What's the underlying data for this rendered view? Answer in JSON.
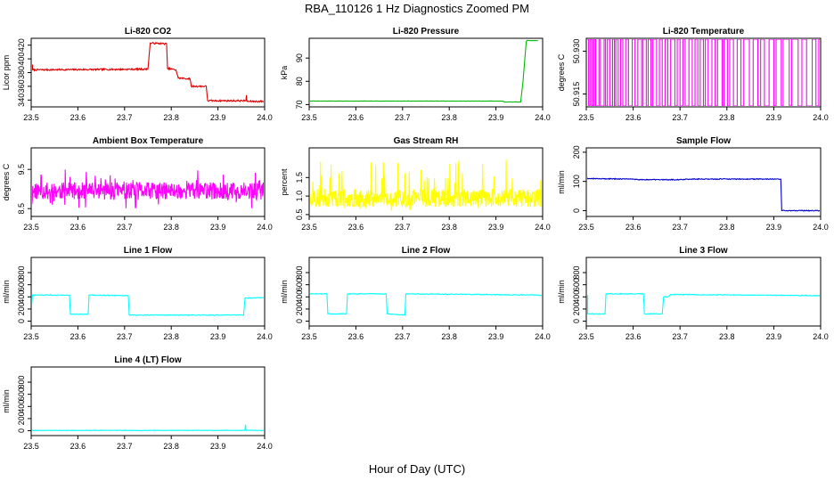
{
  "figure": {
    "title": "RBA_110126  1 Hz Diagnostics Zoomed PM",
    "xlabel": "Hour of Day (UTC)"
  },
  "chart_data": [
    {
      "id": "co2",
      "type": "line",
      "title": "Li-820 CO2",
      "ylabel": "Licor ppm",
      "color": "#dd0000",
      "noise": 1.2,
      "xlim": [
        23.5,
        24.0
      ],
      "ylim": [
        330,
        430
      ],
      "xticks": [
        23.5,
        23.6,
        23.7,
        23.8,
        23.9,
        24.0
      ],
      "xtick_labels": [
        "23.5",
        "23.6",
        "23.7",
        "23.8",
        "23.9",
        "24.0"
      ],
      "yticks": [
        340,
        360,
        380,
        400,
        420
      ],
      "ytick_labels": [
        "340",
        "360",
        "380",
        "400",
        "420"
      ],
      "x": [
        23.5,
        23.503,
        23.503,
        23.75,
        23.755,
        23.79,
        23.792,
        23.81,
        23.815,
        23.84,
        23.843,
        23.875,
        23.878,
        23.96,
        23.961,
        23.962,
        23.963,
        24.0
      ],
      "y": [
        388,
        391,
        384,
        385,
        423,
        422,
        386,
        384,
        372,
        371,
        360,
        360,
        339,
        339,
        347,
        339,
        338,
        338
      ]
    },
    {
      "id": "pressure",
      "type": "line",
      "title": "Li-820 Pressure",
      "ylabel": "kPa",
      "color": "#00bb00",
      "noise": 0.05,
      "xlim": [
        23.5,
        24.0
      ],
      "ylim": [
        69,
        98.5
      ],
      "xticks": [
        23.5,
        23.6,
        23.7,
        23.8,
        23.9,
        24.0
      ],
      "xtick_labels": [
        "23.5",
        "23.6",
        "23.7",
        "23.8",
        "23.9",
        "24.0"
      ],
      "yticks": [
        70,
        80,
        90
      ],
      "ytick_labels": [
        "70",
        "80",
        "90"
      ],
      "x": [
        23.5,
        23.915,
        23.918,
        23.953,
        23.958,
        23.962,
        23.965,
        23.967,
        23.972,
        23.99
      ],
      "y": [
        71.5,
        71.5,
        71.1,
        71.1,
        80,
        90,
        97.2,
        97.6,
        97.5,
        97.5
      ]
    },
    {
      "id": "licor_temp",
      "type": "line",
      "title": "Li-820 Temperature",
      "ylabel": "degrees C",
      "color": "#ff00ff",
      "noise": 0,
      "xlim": [
        23.5,
        24.0
      ],
      "ylim": [
        50.9105,
        50.9345
      ],
      "xticks": [
        23.5,
        23.6,
        23.7,
        23.8,
        23.9,
        24.0
      ],
      "xtick_labels": [
        "23.5",
        "23.6",
        "23.7",
        "23.8",
        "23.9",
        "24.0"
      ],
      "yticks": [
        50.915,
        50.93
      ],
      "ytick_labels": [
        "50.915",
        "50.930"
      ],
      "levels": [
        50.9108,
        50.9342
      ],
      "toggle_times": [
        23.505,
        23.508,
        23.512,
        23.516,
        23.52,
        23.527,
        23.53,
        23.538,
        23.541,
        23.545,
        23.55,
        23.556,
        23.56,
        23.563,
        23.568,
        23.573,
        23.578,
        23.584,
        23.59,
        23.598,
        23.604,
        23.61,
        23.618,
        23.621,
        23.628,
        23.632,
        23.638,
        23.642,
        23.65,
        23.656,
        23.662,
        23.668,
        23.674,
        23.68,
        23.689,
        23.694,
        23.7,
        23.706,
        23.711,
        23.719,
        23.726,
        23.732,
        23.738,
        23.743,
        23.75,
        23.754,
        23.76,
        23.768,
        23.775,
        23.78,
        23.79,
        23.794,
        23.801,
        23.806,
        23.814,
        23.822,
        23.83,
        23.836,
        23.848,
        23.856,
        23.866,
        23.872,
        23.88,
        23.89,
        23.9,
        23.905,
        23.916,
        23.92,
        23.933,
        23.938,
        23.952,
        23.96,
        23.97,
        23.982,
        23.99,
        23.996
      ]
    },
    {
      "id": "box_temp",
      "type": "line",
      "title": "Ambient Box Temperature",
      "ylabel": "degrees C",
      "color": "#ff00ff",
      "mode": "noise",
      "seed": 11,
      "base": 8.95,
      "spread": 0.22,
      "spike_up": 0.55,
      "spike_down": 0.45,
      "xlim": [
        23.5,
        24.0
      ],
      "ylim": [
        8.3,
        10.05
      ],
      "xticks": [
        23.5,
        23.6,
        23.7,
        23.8,
        23.9,
        24.0
      ],
      "xtick_labels": [
        "23.5",
        "23.6",
        "23.7",
        "23.8",
        "23.9",
        "24.0"
      ],
      "yticks": [
        8.5,
        9.5
      ],
      "ytick_labels": [
        "8.5",
        "9.5"
      ]
    },
    {
      "id": "rh",
      "type": "line",
      "title": "Gas Stream RH",
      "ylabel": "percent",
      "color": "#ffff00",
      "mode": "noise",
      "seed": 23,
      "base": 0.95,
      "spread": 0.25,
      "spike_up": 1.05,
      "spike_down": 0.35,
      "xlim": [
        23.5,
        24.0
      ],
      "ylim": [
        0.45,
        2.3
      ],
      "xticks": [
        23.5,
        23.6,
        23.7,
        23.8,
        23.9,
        24.0
      ],
      "xtick_labels": [
        "23.5",
        "23.6",
        "23.7",
        "23.8",
        "23.9",
        "24.0"
      ],
      "yticks": [
        0.5,
        1.0,
        1.5
      ],
      "ytick_labels": [
        "0.5",
        "1.0",
        "1.5"
      ]
    },
    {
      "id": "sample_flow",
      "type": "line",
      "title": "Sample Flow",
      "ylabel": "ml/min",
      "color": "#0000cc",
      "noise": 1.5,
      "xlim": [
        23.5,
        24.0
      ],
      "ylim": [
        -20,
        215
      ],
      "xticks": [
        23.5,
        23.6,
        23.7,
        23.8,
        23.9,
        24.0
      ],
      "xtick_labels": [
        "23.5",
        "23.6",
        "23.7",
        "23.8",
        "23.9",
        "24.0"
      ],
      "yticks": [
        0,
        100,
        200
      ],
      "ytick_labels": [
        "0",
        "100",
        "200"
      ],
      "x": [
        23.5,
        23.6,
        23.61,
        23.7,
        23.72,
        23.915,
        23.917,
        24.0
      ],
      "y": [
        110,
        108,
        106,
        106,
        108,
        108,
        0,
        0
      ]
    },
    {
      "id": "line1",
      "type": "line",
      "title": "Line 1 Flow",
      "ylabel": "ml/min",
      "color": "#00ffff",
      "noise": 6,
      "xlim": [
        23.5,
        24.0
      ],
      "ylim": [
        -80,
        1050
      ],
      "xticks": [
        23.5,
        23.6,
        23.7,
        23.8,
        23.9,
        24.0
      ],
      "xtick_labels": [
        "23.5",
        "23.6",
        "23.7",
        "23.8",
        "23.9",
        "24.0"
      ],
      "yticks": [
        0,
        200,
        400,
        600,
        800
      ],
      "ytick_labels": [
        "0",
        "200",
        "400",
        "600",
        "800"
      ],
      "x": [
        23.5,
        23.503,
        23.503,
        23.582,
        23.584,
        23.622,
        23.624,
        23.708,
        23.71,
        23.955,
        23.958,
        24.0
      ],
      "y": [
        200,
        430,
        430,
        430,
        115,
        115,
        430,
        420,
        100,
        100,
        380,
        390
      ]
    },
    {
      "id": "line2",
      "type": "line",
      "title": "Line 2 Flow",
      "ylabel": "ml/min",
      "color": "#00ffff",
      "noise": 6,
      "xlim": [
        23.5,
        24.0
      ],
      "ylim": [
        -80,
        1050
      ],
      "xticks": [
        23.5,
        23.6,
        23.7,
        23.8,
        23.9,
        24.0
      ],
      "xtick_labels": [
        "23.5",
        "23.6",
        "23.7",
        "23.8",
        "23.9",
        "24.0"
      ],
      "yticks": [
        0,
        200,
        400,
        600,
        800
      ],
      "ytick_labels": [
        "0",
        "200",
        "400",
        "600",
        "800"
      ],
      "x": [
        23.5,
        23.538,
        23.54,
        23.58,
        23.582,
        23.665,
        23.667,
        23.705,
        23.707,
        23.99,
        24.0
      ],
      "y": [
        450,
        450,
        120,
        120,
        450,
        450,
        120,
        100,
        450,
        430,
        420
      ]
    },
    {
      "id": "line3",
      "type": "line",
      "title": "Line 3 Flow",
      "ylabel": "ml/min",
      "color": "#00ffff",
      "noise": 6,
      "xlim": [
        23.5,
        24.0
      ],
      "ylim": [
        -80,
        1050
      ],
      "xticks": [
        23.5,
        23.6,
        23.7,
        23.8,
        23.9,
        24.0
      ],
      "xtick_labels": [
        "23.5",
        "23.6",
        "23.7",
        "23.8",
        "23.9",
        "24.0"
      ],
      "yticks": [
        0,
        200,
        400,
        600,
        800
      ],
      "ytick_labels": [
        "0",
        "200",
        "400",
        "600",
        "800"
      ],
      "x": [
        23.5,
        23.503,
        23.503,
        23.54,
        23.542,
        23.622,
        23.624,
        23.662,
        23.665,
        23.675,
        23.68,
        24.0
      ],
      "y": [
        420,
        420,
        120,
        120,
        450,
        450,
        120,
        120,
        400,
        400,
        440,
        420
      ]
    },
    {
      "id": "line4",
      "type": "line",
      "title": "Line 4 (LT) Flow",
      "ylabel": "ml/min",
      "color": "#00ffff",
      "noise": 4,
      "xlim": [
        23.5,
        24.0
      ],
      "ylim": [
        -80,
        1050
      ],
      "xticks": [
        23.5,
        23.6,
        23.7,
        23.8,
        23.9,
        24.0
      ],
      "xtick_labels": [
        "23.5",
        "23.6",
        "23.7",
        "23.8",
        "23.9",
        "24.0"
      ],
      "yticks": [
        0,
        200,
        400,
        600,
        800
      ],
      "ytick_labels": [
        "0",
        "200",
        "400",
        "600",
        "800"
      ],
      "x": [
        23.5,
        23.958,
        23.959,
        23.96,
        23.961,
        24.0
      ],
      "y": [
        5,
        5,
        100,
        20,
        5,
        5
      ]
    }
  ]
}
